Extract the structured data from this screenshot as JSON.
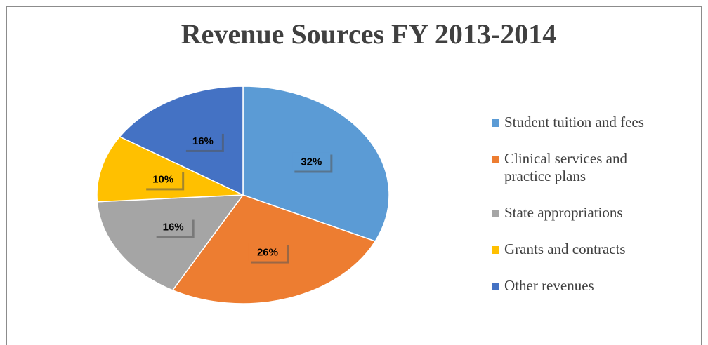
{
  "chart_data": {
    "type": "pie",
    "title": "Revenue Sources FY 2013-2014",
    "categories": [
      "Student tuition and fees",
      "Clinical services and practice plans",
      "State appropriations",
      "Grants and contracts",
      "Other revenues"
    ],
    "values": [
      32,
      26,
      16,
      10,
      16
    ],
    "value_labels": [
      "32%",
      "26%",
      "16%",
      "10%",
      "16%"
    ],
    "colors": [
      "#5b9bd5",
      "#ed7d31",
      "#a5a5a5",
      "#ffc000",
      "#4472c4"
    ],
    "legend": "right"
  }
}
